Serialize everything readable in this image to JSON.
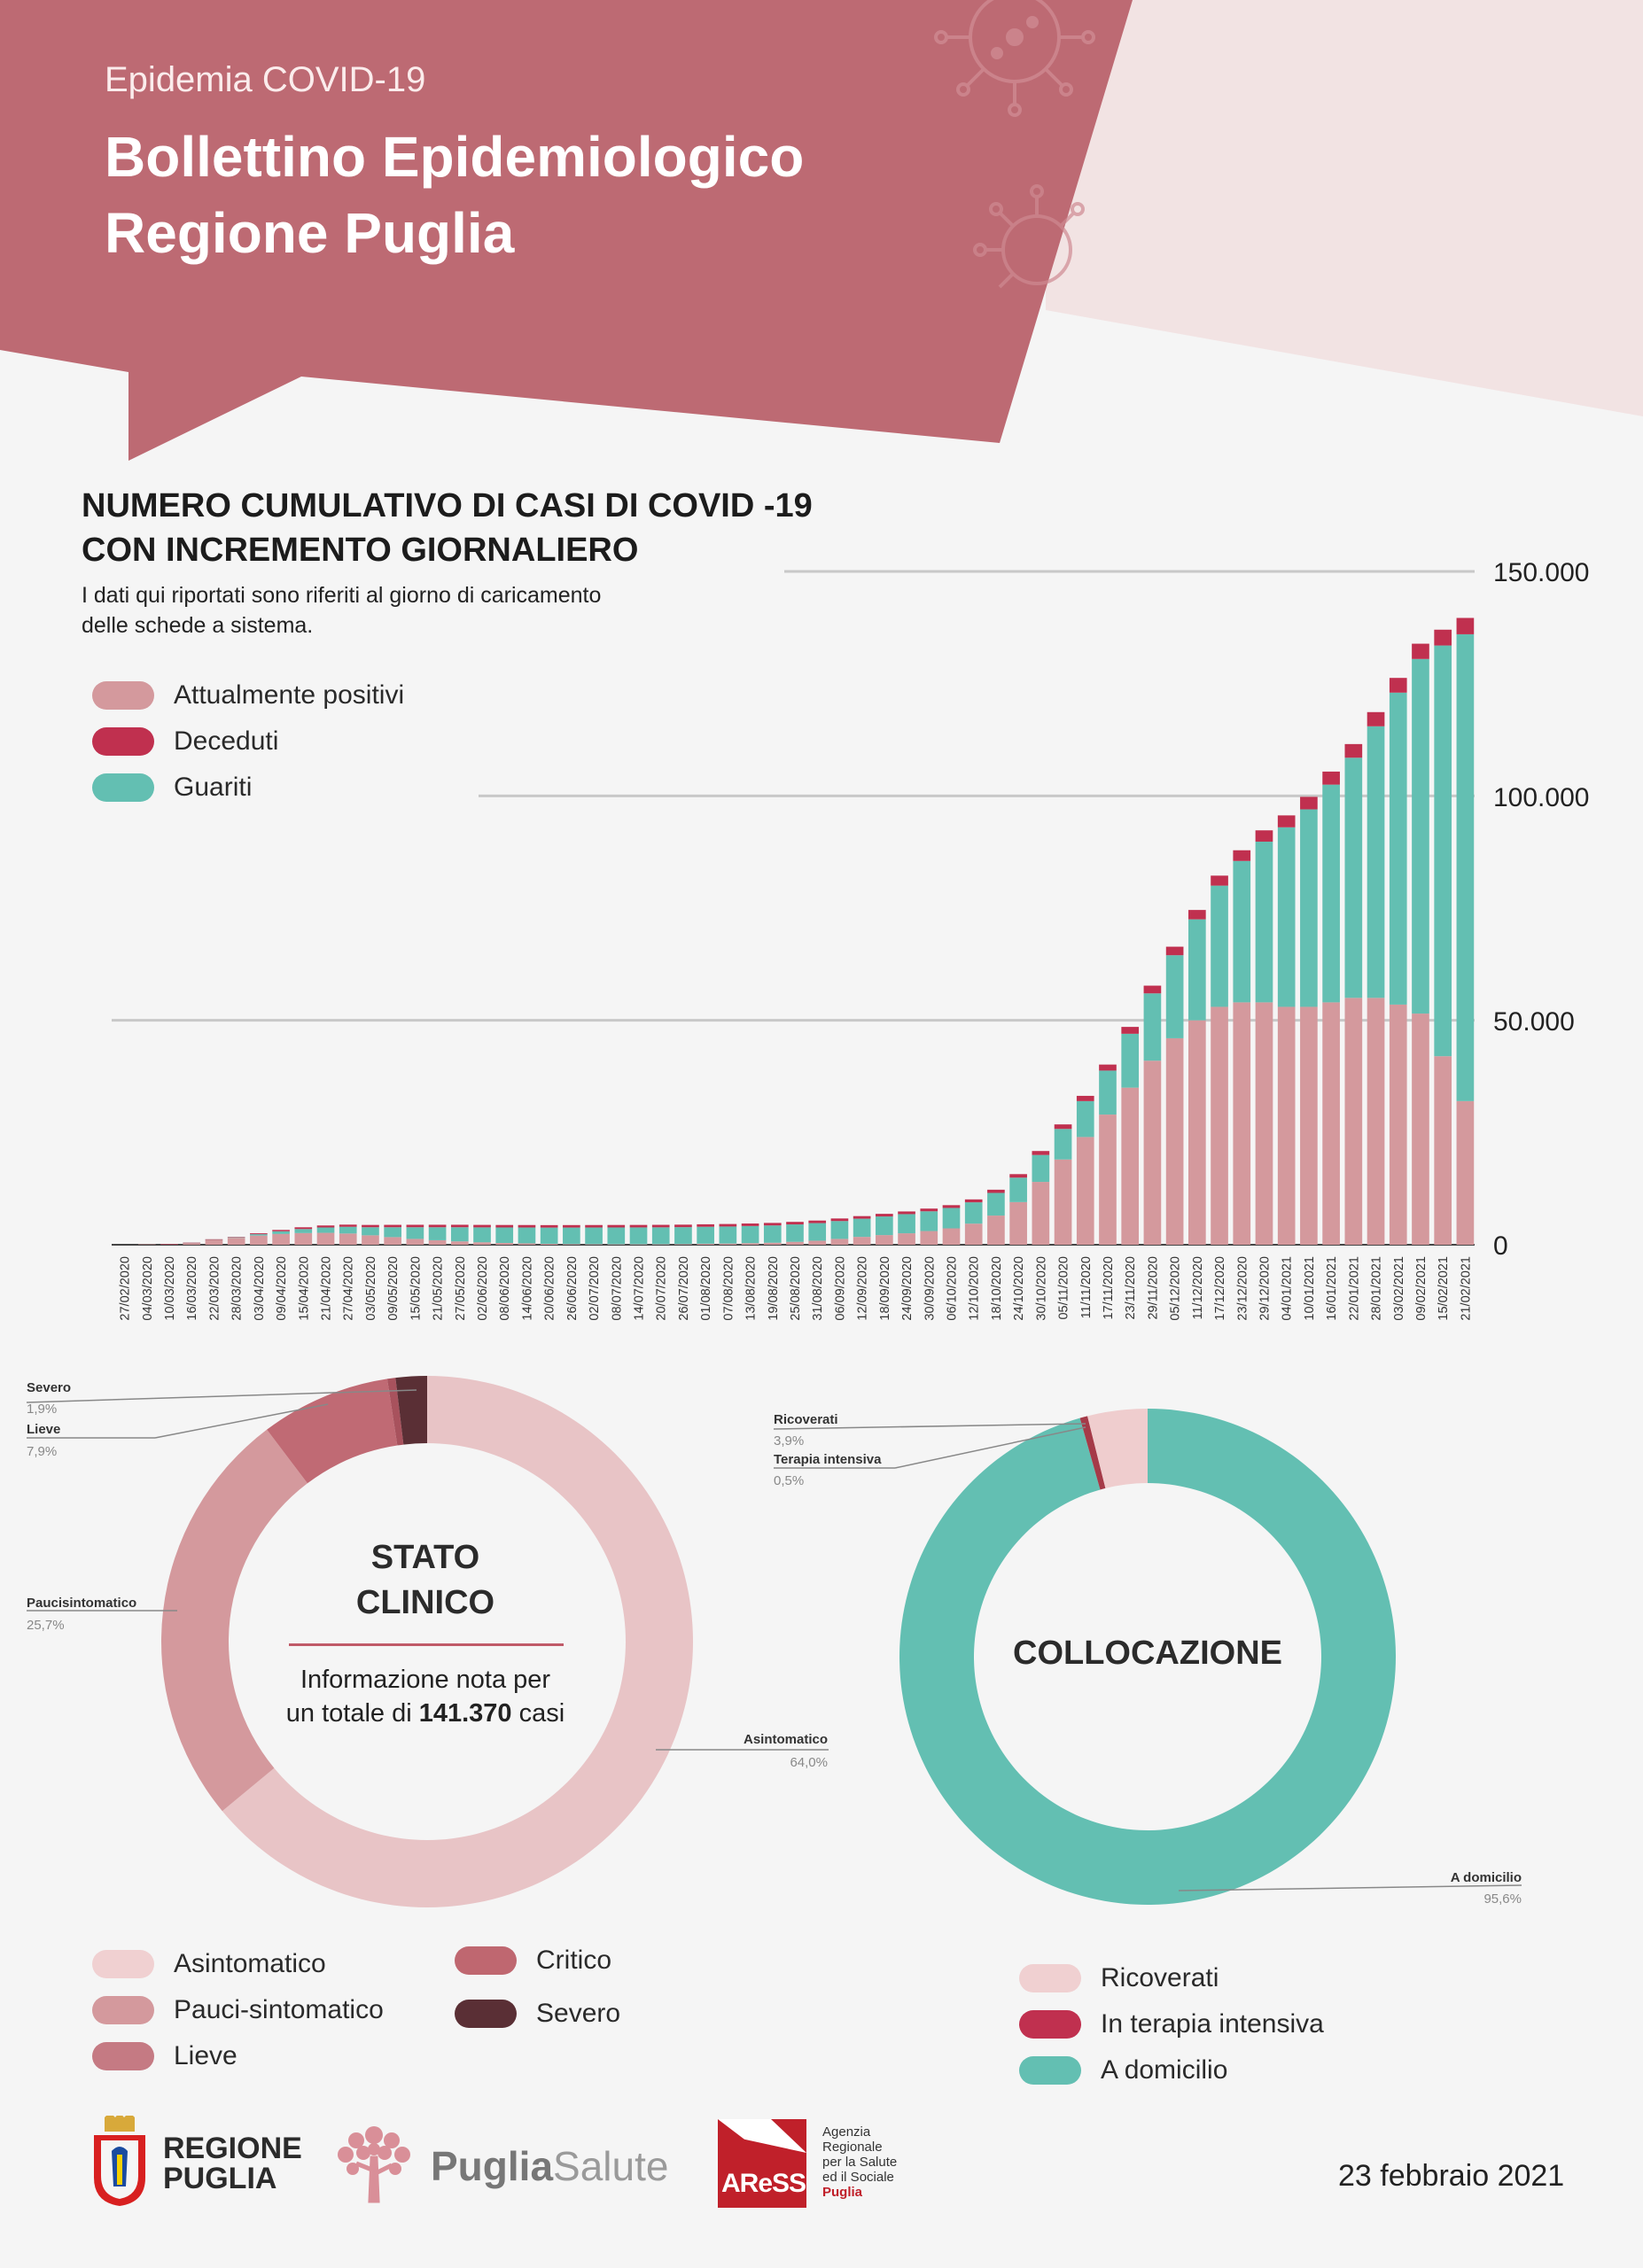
{
  "header": {
    "subtitle": "Epidemia COVID-19",
    "title_line1": "Bollettino Epidemiologico",
    "title_line2": "Regione Puglia"
  },
  "colors": {
    "header": "#bd6a73",
    "header_light": "#f2e3e3",
    "attualmente_positivi": "#d4999d",
    "deceduti": "#c0304f",
    "guariti": "#63bfb2",
    "asintomatico": "#e8c4c6",
    "pauci": "#d4999d",
    "lieve": "#c06a74",
    "critico": "#bf6770",
    "severo": "#5a2f35",
    "ricoverati": "#f0d0d1",
    "terapia_intensiva": "#c0304f",
    "a_domicilio": "#63bfb2"
  },
  "main_chart": {
    "title_line1": "NUMERO CUMULATIVO DI CASI DI COVID -19",
    "title_line2": "CON INCREMENTO GIORNALIERO",
    "subtitle_line1": "I dati qui riportati sono riferiti al giorno di caricamento",
    "subtitle_line2": "delle schede a sistema.",
    "legend": [
      {
        "label": "Attualmente positivi",
        "color": "#d4999d"
      },
      {
        "label": "Deceduti",
        "color": "#c0304f"
      },
      {
        "label": "Guariti",
        "color": "#63bfb2"
      }
    ],
    "y_tick_labels": [
      "0",
      "50.000",
      "100.000",
      "150.000"
    ]
  },
  "chart_data": [
    {
      "type": "bar",
      "stacked": true,
      "title": "NUMERO CUMULATIVO DI CASI DI COVID -19 CON INCREMENTO GIORNALIERO",
      "ylim": [
        0,
        150000
      ],
      "yticks": [
        0,
        50000,
        100000,
        150000
      ],
      "grid": true,
      "legend_position": "top-left",
      "categories": [
        "27/02/2020",
        "04/03/2020",
        "10/03/2020",
        "16/03/2020",
        "22/03/2020",
        "28/03/2020",
        "03/04/2020",
        "09/04/2020",
        "15/04/2020",
        "21/04/2020",
        "27/04/2020",
        "03/05/2020",
        "09/05/2020",
        "15/05/2020",
        "21/05/2020",
        "27/05/2020",
        "02/06/2020",
        "08/06/2020",
        "14/06/2020",
        "20/06/2020",
        "26/06/2020",
        "02/07/2020",
        "08/07/2020",
        "14/07/2020",
        "20/07/2020",
        "26/07/2020",
        "01/08/2020",
        "07/08/2020",
        "13/08/2020",
        "19/08/2020",
        "25/08/2020",
        "31/08/2020",
        "06/09/2020",
        "12/09/2020",
        "18/09/2020",
        "24/09/2020",
        "30/09/2020",
        "06/10/2020",
        "12/10/2020",
        "18/10/2020",
        "24/10/2020",
        "30/10/2020",
        "05/11/2020",
        "11/11/2020",
        "17/11/2020",
        "23/11/2020",
        "29/11/2020",
        "05/12/2020",
        "11/12/2020",
        "17/12/2020",
        "23/12/2020",
        "29/12/2020",
        "04/01/2021",
        "10/01/2021",
        "16/01/2021",
        "22/01/2021",
        "28/01/2021",
        "03/02/2021",
        "09/02/2021",
        "15/02/2021",
        "21/02/2021"
      ],
      "series": [
        {
          "name": "Attualmente positivi",
          "values": [
            0,
            5,
            40,
            350,
            1100,
            1550,
            2050,
            2400,
            2600,
            2650,
            2500,
            2100,
            1700,
            1300,
            1000,
            750,
            550,
            400,
            300,
            200,
            150,
            120,
            100,
            100,
            110,
            150,
            220,
            260,
            350,
            450,
            650,
            900,
            1300,
            1750,
            2150,
            2550,
            3050,
            3650,
            4700,
            6500,
            9500,
            14000,
            19000,
            24000,
            29000,
            35000,
            41000,
            46000,
            50000,
            53000,
            54000,
            54000,
            53000,
            53000,
            54000,
            55000,
            55000,
            53500,
            51500,
            42000,
            32000
          ]
        },
        {
          "name": "Deceduti",
          "values": [
            0,
            0,
            1,
            5,
            30,
            100,
            200,
            300,
            390,
            440,
            480,
            510,
            530,
            545,
            550,
            550,
            551,
            551,
            551,
            551,
            551,
            551,
            552,
            552,
            553,
            555,
            557,
            558,
            560,
            562,
            565,
            568,
            572,
            578,
            585,
            595,
            605,
            620,
            650,
            710,
            780,
            880,
            1010,
            1170,
            1340,
            1530,
            1720,
            1900,
            2080,
            2230,
            2380,
            2520,
            2650,
            2780,
            2910,
            3040,
            3160,
            3280,
            3400,
            3520,
            3640
          ]
        },
        {
          "name": "Guariti",
          "values": [
            0,
            0,
            0,
            5,
            20,
            100,
            300,
            600,
            900,
            1200,
            1500,
            1800,
            2200,
            2600,
            2900,
            3150,
            3320,
            3450,
            3540,
            3620,
            3680,
            3720,
            3750,
            3760,
            3770,
            3770,
            3780,
            3800,
            3820,
            3850,
            3880,
            3920,
            3980,
            4050,
            4150,
            4270,
            4400,
            4550,
            4750,
            5050,
            5450,
            6000,
            6800,
            8000,
            9800,
            12000,
            15000,
            18500,
            22500,
            27000,
            31500,
            35800,
            40000,
            44000,
            48500,
            53500,
            60500,
            69500,
            79000,
            91500,
            104000
          ]
        }
      ]
    },
    {
      "type": "pie",
      "donut": true,
      "title": "STATO CLINICO",
      "labels": [
        "Asintomatico",
        "Paucisintomatico",
        "Lieve",
        "Severo",
        "Critico"
      ],
      "values": [
        64.0,
        25.7,
        7.9,
        1.9,
        0.5
      ]
    },
    {
      "type": "pie",
      "donut": true,
      "title": "COLLOCAZIONE",
      "labels": [
        "A domicilio",
        "Terapia intensiva",
        "Ricoverati"
      ],
      "values": [
        95.6,
        0.5,
        3.9
      ]
    }
  ],
  "stato_clinico": {
    "title_line1": "STATO",
    "title_line2": "CLINICO",
    "info_line1": "Informazione nota per",
    "info_prefix": "un totale di",
    "info_total": "141.370",
    "info_suffix": "casi",
    "callouts": [
      {
        "label": "Severo",
        "value": "1,9%"
      },
      {
        "label": "Lieve",
        "value": "7,9%"
      },
      {
        "label": "Paucisintomatico",
        "value": "25,7%"
      },
      {
        "label": "Asintomatico",
        "value": "64,0%"
      }
    ],
    "legend": [
      {
        "label": "Asintomatico",
        "color": "#f0d0d1"
      },
      {
        "label": "Pauci-sintomatico",
        "color": "#d4999d"
      },
      {
        "label": "Lieve",
        "color": "#c57a83"
      },
      {
        "label": "Critico",
        "color": "#bf6770"
      },
      {
        "label": "Severo",
        "color": "#5a2f35"
      }
    ]
  },
  "collocazione": {
    "title": "COLLOCAZIONE",
    "callouts": [
      {
        "label": "Ricoverati",
        "value": "3,9%"
      },
      {
        "label": "Terapia intensiva",
        "value": "0,5%"
      },
      {
        "label": "A domicilio",
        "value": "95,6%"
      }
    ],
    "legend": [
      {
        "label": "Ricoverati",
        "color": "#f0d0d1"
      },
      {
        "label": "In terapia intensiva",
        "color": "#c0304f"
      },
      {
        "label": "A domicilio",
        "color": "#63bfb2"
      }
    ]
  },
  "footer": {
    "regione_line1": "REGIONE",
    "regione_line2": "PUGLIA",
    "puglia_salute_bold": "Puglia",
    "puglia_salute_light": "Salute",
    "aress_logo": "AReSS",
    "aress_lines": [
      "Agenzia",
      "Regionale",
      "per la Salute",
      "ed il Sociale"
    ],
    "aress_puglia": "Puglia",
    "date": "23 febbraio 2021"
  }
}
